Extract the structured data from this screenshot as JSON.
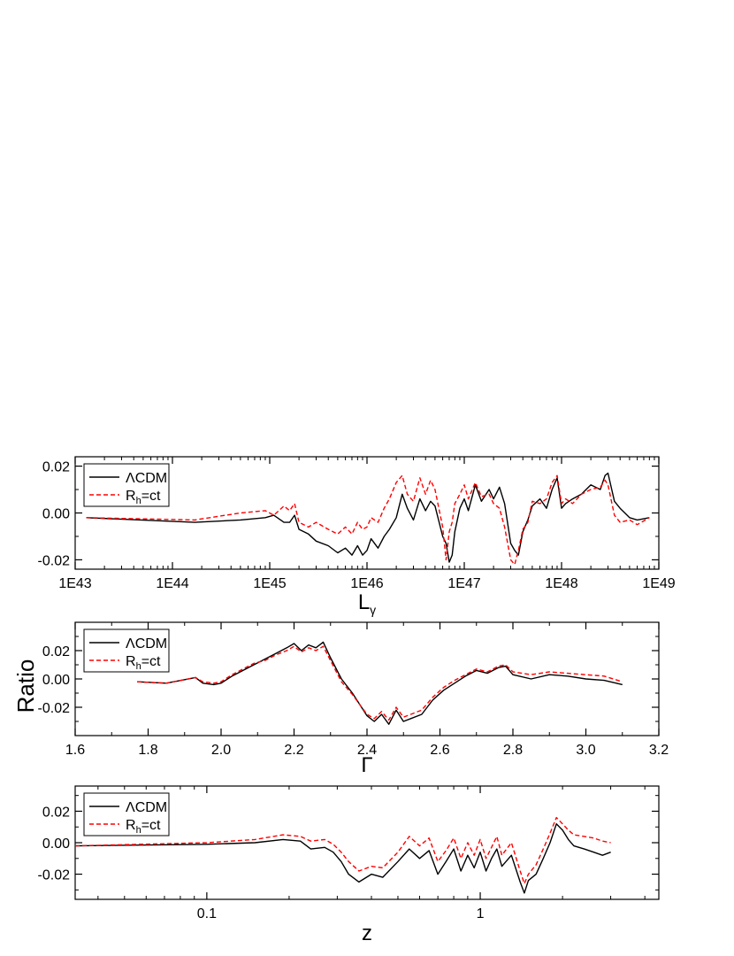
{
  "figure": {
    "ylabel": "Ratio",
    "legend_labels": {
      "lcdm_main": "ΛCDM",
      "rh_main": "R",
      "rh_sub": "h",
      "rh_tail": "=ct"
    },
    "colors": {
      "lcdm": "#000000",
      "rh": "#ff0000"
    }
  },
  "chart_data": [
    {
      "type": "line",
      "xlabel": "L",
      "xlabel_sub": "γ",
      "xscale": "log",
      "xlim": [
        1e+43,
        1e+49
      ],
      "ylim": [
        -0.024,
        0.024
      ],
      "x_tick_labels": [
        "1E43",
        "1E44",
        "1E45",
        "1E46",
        "1E47",
        "1E48",
        "1E49"
      ],
      "x_tick_values": [
        1e+43,
        1e+44,
        1e+45,
        1e+46,
        1e+47,
        1e+48,
        1e+49
      ],
      "y_tick_labels": [
        "0.02",
        "0.00",
        "-0.02"
      ],
      "y_tick_values": [
        0.02,
        0.0,
        -0.02
      ],
      "legend": "top-left",
      "series": [
        {
          "name": "ΛCDM",
          "style": "solid",
          "x": [
            1.3e+43,
            1.7e+44,
            5e+44,
            9e+44,
            1.1e+45,
            1.4e+45,
            1.6e+45,
            1.8e+45,
            2e+45,
            2.5e+45,
            3e+45,
            4e+45,
            5e+45,
            6e+45,
            7e+45,
            8e+45,
            9e+45,
            1e+46,
            1.1e+46,
            1.3e+46,
            1.5e+46,
            1.7e+46,
            2e+46,
            2.3e+46,
            2.6e+46,
            3e+46,
            3.5e+46,
            4e+46,
            4.5e+46,
            5e+46,
            6e+46,
            6.5e+46,
            7e+46,
            7.5e+46,
            8e+46,
            9e+46,
            1e+47,
            1.1e+47,
            1.3e+47,
            1.5e+47,
            1.8e+47,
            2e+47,
            2.3e+47,
            2.6e+47,
            3e+47,
            3.3e+47,
            3.6e+47,
            4e+47,
            4.5e+47,
            5e+47,
            6e+47,
            7e+47,
            8e+47,
            9e+47,
            1e+48,
            1.1e+48,
            1.3e+48,
            1.6e+48,
            2e+48,
            2.5e+48,
            2.8e+48,
            3e+48,
            3.5e+48,
            4e+48,
            5e+48,
            6e+48,
            8e+48
          ],
          "y": [
            -0.002,
            -0.004,
            -0.003,
            -0.002,
            -0.001,
            -0.004,
            -0.004,
            -0.001,
            -0.007,
            -0.009,
            -0.012,
            -0.014,
            -0.017,
            -0.015,
            -0.018,
            -0.014,
            -0.018,
            -0.016,
            -0.011,
            -0.015,
            -0.01,
            -0.007,
            -0.002,
            0.008,
            0.002,
            -0.003,
            0.006,
            0.001,
            0.005,
            0.003,
            -0.01,
            -0.013,
            -0.021,
            -0.018,
            -0.008,
            0.002,
            0.006,
            0.001,
            0.012,
            0.005,
            0.01,
            0.006,
            0.011,
            0.004,
            -0.013,
            -0.016,
            -0.018,
            -0.008,
            -0.003,
            0.003,
            0.006,
            0.002,
            0.01,
            0.015,
            0.002,
            0.004,
            0.006,
            0.008,
            0.012,
            0.01,
            0.016,
            0.017,
            0.005,
            0.002,
            -0.002,
            -0.003,
            -0.002
          ]
        },
        {
          "name": "R_h=ct",
          "style": "dashed",
          "x": [
            1.3e+43,
            1.7e+44,
            5e+44,
            9e+44,
            1.1e+45,
            1.4e+45,
            1.6e+45,
            1.8e+45,
            2e+45,
            2.5e+45,
            3e+45,
            4e+45,
            5e+45,
            6e+45,
            7e+45,
            8e+45,
            9e+45,
            1e+46,
            1.1e+46,
            1.3e+46,
            1.5e+46,
            1.7e+46,
            2e+46,
            2.3e+46,
            2.6e+46,
            3e+46,
            3.5e+46,
            4e+46,
            4.5e+46,
            5e+46,
            6e+46,
            6.5e+46,
            7e+46,
            7.5e+46,
            8e+46,
            9e+46,
            1e+47,
            1.1e+47,
            1.3e+47,
            1.5e+47,
            1.8e+47,
            2e+47,
            2.3e+47,
            2.6e+47,
            3e+47,
            3.3e+47,
            3.6e+47,
            4e+47,
            4.5e+47,
            5e+47,
            6e+47,
            7e+47,
            8e+47,
            9e+47,
            1e+48,
            1.1e+48,
            1.3e+48,
            1.6e+48,
            2e+48,
            2.5e+48,
            2.8e+48,
            3e+48,
            3.5e+48,
            4e+48,
            5e+48,
            6e+48,
            8e+48
          ],
          "y": [
            -0.002,
            -0.003,
            0.0,
            0.001,
            -0.001,
            0.003,
            0.001,
            0.004,
            -0.004,
            -0.006,
            -0.004,
            -0.007,
            -0.009,
            -0.006,
            -0.009,
            -0.004,
            -0.007,
            -0.006,
            -0.002,
            -0.004,
            0.002,
            0.006,
            0.013,
            0.016,
            0.008,
            0.005,
            0.015,
            0.008,
            0.014,
            0.01,
            -0.006,
            -0.02,
            -0.008,
            -0.004,
            0.004,
            0.008,
            0.012,
            0.006,
            0.013,
            0.007,
            0.008,
            0.004,
            0.002,
            -0.006,
            -0.02,
            -0.022,
            -0.016,
            -0.007,
            -0.004,
            0.005,
            0.004,
            0.006,
            0.013,
            0.016,
            0.004,
            0.006,
            0.004,
            0.008,
            0.01,
            0.011,
            0.014,
            0.012,
            -0.001,
            -0.004,
            -0.003,
            -0.005,
            -0.002
          ]
        }
      ]
    },
    {
      "type": "line",
      "xlabel": "Γ",
      "xscale": "linear",
      "xlim": [
        1.6,
        3.2
      ],
      "ylim": [
        -0.04,
        0.04
      ],
      "x_tick_labels": [
        "1.6",
        "1.8",
        "2.0",
        "2.2",
        "2.4",
        "2.6",
        "2.8",
        "3.0",
        "3.2"
      ],
      "x_tick_values": [
        1.6,
        1.8,
        2.0,
        2.2,
        2.4,
        2.6,
        2.8,
        3.0,
        3.2
      ],
      "y_tick_labels": [
        "0.02",
        "0.00",
        "-0.02"
      ],
      "y_tick_values": [
        0.02,
        0.0,
        -0.02
      ],
      "legend": "top-left",
      "series": [
        {
          "name": "ΛCDM",
          "style": "solid",
          "x": [
            1.77,
            1.85,
            1.93,
            1.95,
            1.98,
            2.0,
            2.03,
            2.06,
            2.09,
            2.12,
            2.15,
            2.18,
            2.2,
            2.22,
            2.24,
            2.26,
            2.28,
            2.3,
            2.33,
            2.36,
            2.38,
            2.4,
            2.42,
            2.44,
            2.46,
            2.48,
            2.5,
            2.52,
            2.55,
            2.58,
            2.61,
            2.64,
            2.67,
            2.7,
            2.73,
            2.76,
            2.78,
            2.8,
            2.85,
            2.9,
            2.95,
            3.0,
            3.05,
            3.1
          ],
          "y": [
            -0.002,
            -0.003,
            0.001,
            -0.003,
            -0.004,
            -0.003,
            0.002,
            0.006,
            0.01,
            0.014,
            0.018,
            0.022,
            0.025,
            0.02,
            0.024,
            0.022,
            0.026,
            0.015,
            0.0,
            -0.01,
            -0.018,
            -0.026,
            -0.03,
            -0.025,
            -0.032,
            -0.022,
            -0.03,
            -0.028,
            -0.025,
            -0.015,
            -0.008,
            -0.003,
            0.002,
            0.006,
            0.004,
            0.008,
            0.009,
            0.003,
            0.0,
            0.003,
            0.002,
            0.0,
            -0.001,
            -0.004
          ]
        },
        {
          "name": "R_h=ct",
          "style": "dashed",
          "x": [
            1.77,
            1.85,
            1.93,
            1.95,
            1.98,
            2.0,
            2.03,
            2.06,
            2.09,
            2.12,
            2.15,
            2.18,
            2.2,
            2.22,
            2.24,
            2.26,
            2.28,
            2.3,
            2.33,
            2.36,
            2.38,
            2.4,
            2.42,
            2.44,
            2.46,
            2.48,
            2.5,
            2.52,
            2.55,
            2.58,
            2.61,
            2.64,
            2.67,
            2.7,
            2.73,
            2.76,
            2.78,
            2.8,
            2.85,
            2.9,
            2.95,
            3.0,
            3.05,
            3.1
          ],
          "y": [
            -0.002,
            -0.003,
            0.001,
            -0.002,
            -0.003,
            -0.002,
            0.003,
            0.007,
            0.011,
            0.013,
            0.017,
            0.02,
            0.023,
            0.019,
            0.022,
            0.02,
            0.023,
            0.013,
            -0.002,
            -0.011,
            -0.018,
            -0.025,
            -0.028,
            -0.023,
            -0.029,
            -0.02,
            -0.027,
            -0.025,
            -0.022,
            -0.013,
            -0.006,
            -0.001,
            0.003,
            0.007,
            0.005,
            0.009,
            0.01,
            0.005,
            0.003,
            0.005,
            0.004,
            0.003,
            0.002,
            -0.002
          ]
        }
      ]
    },
    {
      "type": "line",
      "xlabel": "z",
      "xscale": "log",
      "xlim": [
        0.033,
        4.5
      ],
      "ylim": [
        -0.036,
        0.036
      ],
      "x_tick_labels": [
        "0.1",
        "1"
      ],
      "x_tick_values": [
        0.1,
        1
      ],
      "y_tick_labels": [
        "0.02",
        "0.00",
        "-0.02"
      ],
      "y_tick_values": [
        0.02,
        0.0,
        -0.02
      ],
      "legend": "top-left",
      "series": [
        {
          "name": "ΛCDM",
          "style": "solid",
          "x": [
            0.033,
            0.1,
            0.15,
            0.19,
            0.22,
            0.24,
            0.27,
            0.29,
            0.31,
            0.33,
            0.36,
            0.4,
            0.44,
            0.5,
            0.55,
            0.6,
            0.65,
            0.7,
            0.75,
            0.8,
            0.85,
            0.9,
            0.95,
            1.0,
            1.05,
            1.1,
            1.15,
            1.2,
            1.3,
            1.4,
            1.45,
            1.5,
            1.6,
            1.7,
            1.8,
            1.9,
            2.0,
            2.1,
            2.2,
            2.4,
            2.6,
            2.8,
            3.0
          ],
          "y": [
            -0.002,
            -0.001,
            0.0,
            0.002,
            0.001,
            -0.004,
            -0.003,
            -0.006,
            -0.012,
            -0.02,
            -0.025,
            -0.02,
            -0.022,
            -0.012,
            -0.004,
            -0.01,
            -0.005,
            -0.02,
            -0.012,
            -0.004,
            -0.018,
            -0.008,
            -0.016,
            -0.006,
            -0.018,
            -0.01,
            -0.004,
            -0.015,
            -0.008,
            -0.025,
            -0.032,
            -0.024,
            -0.02,
            -0.01,
            0.0,
            0.012,
            0.008,
            0.002,
            -0.002,
            -0.004,
            -0.006,
            -0.008,
            -0.006
          ]
        },
        {
          "name": "R_h=ct",
          "style": "dashed",
          "x": [
            0.033,
            0.1,
            0.15,
            0.19,
            0.22,
            0.24,
            0.27,
            0.29,
            0.31,
            0.33,
            0.36,
            0.4,
            0.44,
            0.5,
            0.55,
            0.6,
            0.65,
            0.7,
            0.75,
            0.8,
            0.85,
            0.9,
            0.95,
            1.0,
            1.05,
            1.1,
            1.15,
            1.2,
            1.3,
            1.4,
            1.45,
            1.5,
            1.6,
            1.7,
            1.8,
            1.9,
            2.0,
            2.1,
            2.2,
            2.4,
            2.6,
            2.8,
            3.0
          ],
          "y": [
            -0.002,
            0.0,
            0.002,
            0.005,
            0.004,
            0.001,
            0.002,
            -0.001,
            -0.006,
            -0.012,
            -0.018,
            -0.015,
            -0.016,
            -0.006,
            0.004,
            -0.002,
            0.003,
            -0.012,
            -0.005,
            0.003,
            -0.01,
            0.0,
            -0.008,
            0.002,
            -0.01,
            -0.003,
            0.004,
            -0.008,
            0.0,
            -0.018,
            -0.026,
            -0.02,
            -0.014,
            -0.004,
            0.006,
            0.016,
            0.012,
            0.008,
            0.005,
            0.004,
            0.003,
            0.001,
            0.0
          ]
        }
      ]
    }
  ]
}
